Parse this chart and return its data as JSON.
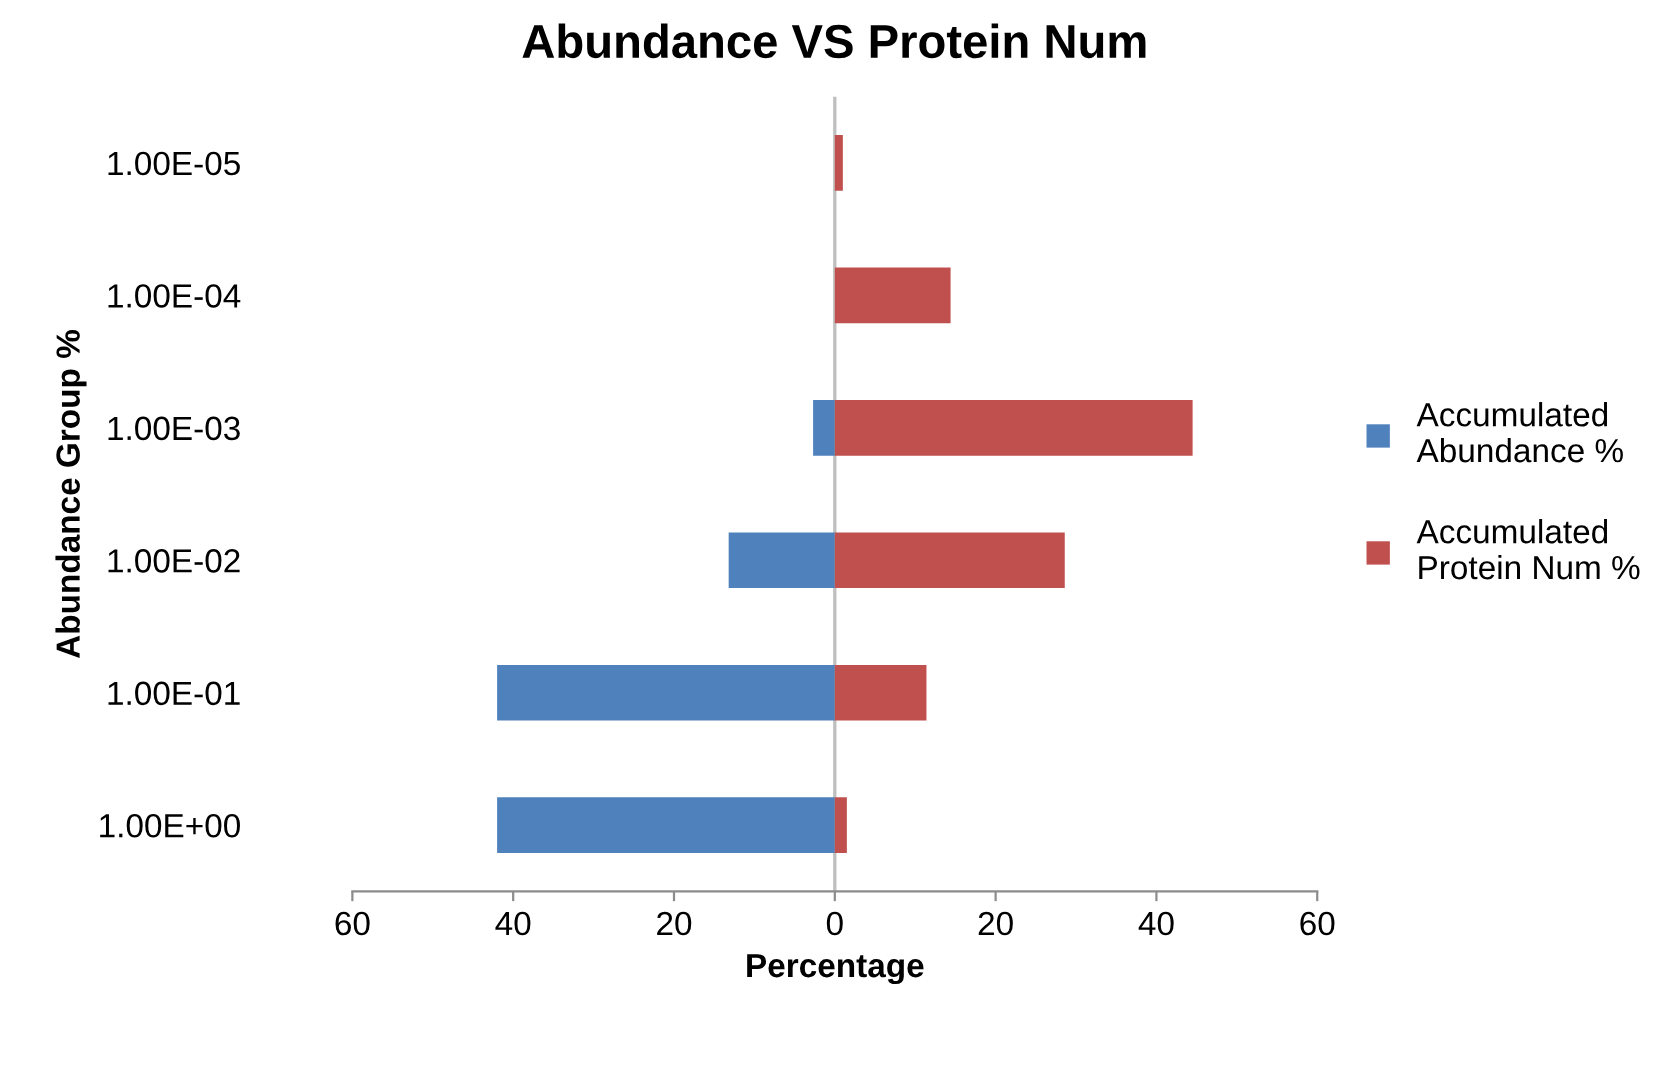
{
  "chart_data": {
    "type": "bar",
    "orientation": "horizontal",
    "title": "Abundance VS Protein Num",
    "xlabel": "Percentage",
    "ylabel": "Abundance Group %",
    "categories": [
      "1.00E-05",
      "1.00E-04",
      "1.00E-03",
      "1.00E-02",
      "1.00E-01",
      "1.00E+00"
    ],
    "series": [
      {
        "name": "Accumulated\nAbundance %",
        "color": "#4f81bd",
        "values": [
          null,
          null,
          -2.7,
          -13.2,
          -42,
          -42
        ]
      },
      {
        "name": "Accumulated\nProtein Num %",
        "color": "#c0504d",
        "values": [
          1,
          14.4,
          44.5,
          28.6,
          11.4,
          1.5
        ]
      }
    ],
    "xlim": [
      -60,
      60
    ],
    "xticks": [
      {
        "value": -60,
        "label": "60"
      },
      {
        "value": -40,
        "label": "40"
      },
      {
        "value": -20,
        "label": "20"
      },
      0,
      20,
      40,
      60
    ],
    "ref_lines": [
      {
        "axis": "x",
        "value": 0,
        "color": "#bfbfbf"
      }
    ],
    "stacked": true,
    "grid": false,
    "legend": "right"
  }
}
